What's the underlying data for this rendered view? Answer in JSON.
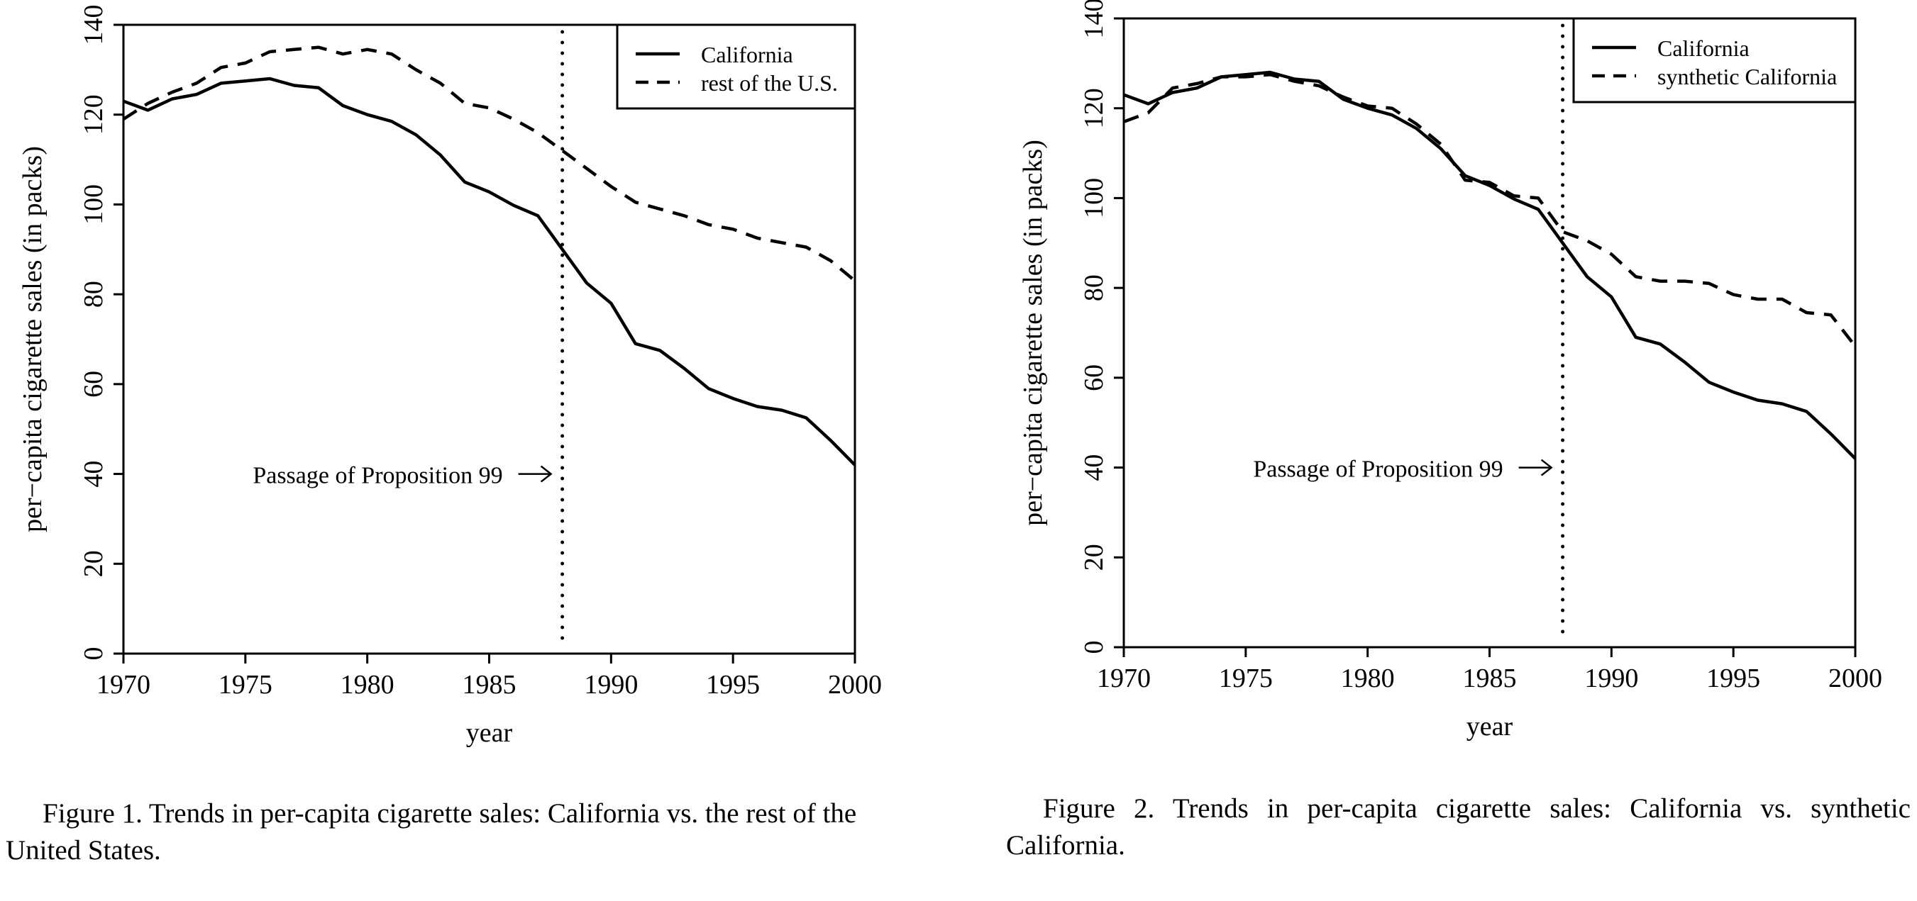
{
  "chart_data": [
    {
      "type": "line",
      "xlabel": "year",
      "ylabel": "per−capita cigarette sales (in packs)",
      "xlim": [
        1970,
        2000
      ],
      "ylim": [
        0,
        140
      ],
      "xticks": [
        1970,
        1975,
        1980,
        1985,
        1990,
        1995,
        2000
      ],
      "yticks": [
        0,
        20,
        40,
        60,
        80,
        100,
        120,
        140
      ],
      "grid": false,
      "legend_position": "top-right",
      "x": [
        1970,
        1971,
        1972,
        1973,
        1974,
        1975,
        1976,
        1977,
        1978,
        1979,
        1980,
        1981,
        1982,
        1983,
        1984,
        1985,
        1986,
        1987,
        1988,
        1989,
        1990,
        1991,
        1992,
        1993,
        1994,
        1995,
        1996,
        1997,
        1998,
        1999,
        2000
      ],
      "series": [
        {
          "name": "California",
          "style": "solid",
          "values": [
            123.0,
            121.0,
            123.5,
            124.5,
            127.0,
            127.5,
            128.0,
            126.5,
            126.0,
            122.0,
            120.0,
            118.5,
            115.5,
            111.0,
            105.0,
            102.8,
            99.8,
            97.5,
            90.0,
            82.5,
            78.0,
            69.0,
            67.5,
            63.5,
            59.0,
            56.8,
            55.0,
            54.2,
            52.5,
            47.5,
            42.0
          ]
        },
        {
          "name": "rest of the U.S.",
          "style": "dashed",
          "values": [
            119.0,
            122.5,
            125.0,
            127.0,
            130.5,
            131.5,
            134.0,
            134.5,
            135.0,
            133.5,
            134.5,
            133.5,
            130.0,
            127.0,
            122.5,
            121.5,
            119.0,
            116.0,
            112.0,
            108.0,
            104.0,
            100.5,
            99.0,
            97.5,
            95.5,
            94.5,
            92.5,
            91.5,
            90.5,
            87.5,
            83.0
          ]
        }
      ],
      "annotation": {
        "text": "Passage of Proposition 99",
        "x": 1988,
        "y": 40
      },
      "vline": {
        "x": 1988,
        "style": "dotted"
      }
    },
    {
      "type": "line",
      "xlabel": "year",
      "ylabel": "per−capita cigarette sales (in packs)",
      "xlim": [
        1970,
        2000
      ],
      "ylim": [
        0,
        140
      ],
      "xticks": [
        1970,
        1975,
        1980,
        1985,
        1990,
        1995,
        2000
      ],
      "yticks": [
        0,
        20,
        40,
        60,
        80,
        100,
        120,
        140
      ],
      "grid": false,
      "legend_position": "top-right",
      "x": [
        1970,
        1971,
        1972,
        1973,
        1974,
        1975,
        1976,
        1977,
        1978,
        1979,
        1980,
        1981,
        1982,
        1983,
        1984,
        1985,
        1986,
        1987,
        1988,
        1989,
        1990,
        1991,
        1992,
        1993,
        1994,
        1995,
        1996,
        1997,
        1998,
        1999,
        2000
      ],
      "series": [
        {
          "name": "California",
          "style": "solid",
          "values": [
            123.0,
            121.0,
            123.5,
            124.5,
            127.0,
            127.5,
            128.0,
            126.5,
            126.0,
            122.0,
            120.0,
            118.5,
            115.5,
            111.0,
            105.0,
            102.8,
            99.8,
            97.5,
            90.0,
            82.5,
            78.0,
            69.0,
            67.5,
            63.5,
            59.0,
            56.8,
            55.0,
            54.2,
            52.5,
            47.5,
            42.0
          ]
        },
        {
          "name": "synthetic California",
          "style": "dashed",
          "values": [
            117.0,
            119.0,
            124.5,
            125.5,
            127.0,
            127.0,
            127.5,
            126.0,
            125.0,
            122.5,
            120.5,
            120.0,
            116.5,
            112.0,
            104.0,
            103.5,
            100.5,
            100.0,
            92.5,
            90.5,
            87.5,
            82.5,
            81.5,
            81.5,
            81.0,
            78.5,
            77.5,
            77.5,
            74.5,
            74.0,
            67.0
          ]
        }
      ],
      "annotation": {
        "text": "Passage of Proposition 99",
        "x": 1988,
        "y": 40
      },
      "vline": {
        "x": 1988,
        "style": "dotted"
      }
    }
  ],
  "captions": {
    "figure1": "Figure 1.  Trends in per-capita cigarette sales: California vs. the rest of the United States.",
    "figure2": "Figure 2.  Trends in per-capita cigarette sales: California vs. synthetic California."
  }
}
